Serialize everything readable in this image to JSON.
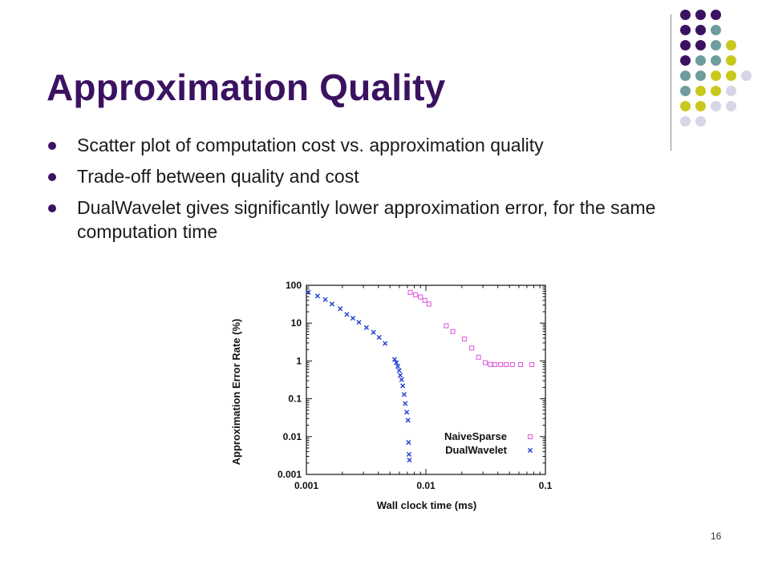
{
  "slide": {
    "title": "Approximation Quality",
    "bullets": [
      "Scatter plot of computation cost vs. approximation quality",
      "Trade-off between quality and cost",
      "DualWavelet gives significantly lower approximation error, for the same computation time"
    ],
    "page_number": "16"
  },
  "decoration": {
    "dot_rows": [
      [
        "purple",
        "purple",
        "purple"
      ],
      [
        "purple",
        "purple",
        "teal"
      ],
      [
        "purple",
        "purple",
        "teal",
        "yellow"
      ],
      [
        "purple",
        "teal",
        "teal",
        "yellow"
      ],
      [
        "teal",
        "teal",
        "yellow",
        "yellow",
        "lavender"
      ],
      [
        "teal",
        "yellow",
        "yellow",
        "lavender"
      ],
      [
        "yellow",
        "yellow",
        "lavender",
        "lavender"
      ],
      [
        "lavender",
        "lavender"
      ]
    ],
    "colors": {
      "purple": "#3b1261",
      "teal": "#6f9c9c",
      "yellow": "#c8c81e",
      "lavender": "#d6d6e6",
      "title": "#3b1261"
    }
  },
  "chart_data": {
    "type": "scatter",
    "xlabel": "Wall clock time (ms)",
    "ylabel": "Approximation Error Rate (%)",
    "x_scale": "log",
    "y_scale": "log",
    "xlim": [
      0.001,
      0.1
    ],
    "ylim": [
      0.001,
      100
    ],
    "x_ticks": [
      0.001,
      0.01,
      0.1
    ],
    "x_tick_labels": [
      "0.001",
      "0.01",
      "0.1"
    ],
    "y_ticks": [
      0.001,
      0.01,
      0.1,
      1,
      10,
      100
    ],
    "y_tick_labels": [
      "0.001",
      "0.01",
      "0.1",
      "1",
      "10",
      "100"
    ],
    "grid": false,
    "legend_position": "bottom-right",
    "series": [
      {
        "name": "NaiveSparse",
        "marker": "square",
        "color": "#e060e0",
        "points": [
          [
            0.0074,
            65
          ],
          [
            0.0082,
            56
          ],
          [
            0.009,
            49
          ],
          [
            0.0098,
            40
          ],
          [
            0.0106,
            32
          ],
          [
            0.0148,
            8.5
          ],
          [
            0.0168,
            6
          ],
          [
            0.021,
            3.8
          ],
          [
            0.0242,
            2.2
          ],
          [
            0.0276,
            1.25
          ],
          [
            0.0314,
            0.9
          ],
          [
            0.0346,
            0.81
          ],
          [
            0.0378,
            0.8
          ],
          [
            0.0422,
            0.8
          ],
          [
            0.047,
            0.8
          ],
          [
            0.053,
            0.8
          ],
          [
            0.062,
            0.8
          ],
          [
            0.077,
            0.8
          ]
        ]
      },
      {
        "name": "DualWavelet",
        "marker": "x",
        "color": "#1f3fd0",
        "points": [
          [
            0.00104,
            65
          ],
          [
            0.00124,
            52
          ],
          [
            0.00144,
            42
          ],
          [
            0.00164,
            32
          ],
          [
            0.00192,
            24
          ],
          [
            0.00218,
            17
          ],
          [
            0.00245,
            13.5
          ],
          [
            0.00275,
            10.5
          ],
          [
            0.00318,
            7.6
          ],
          [
            0.00364,
            5.7
          ],
          [
            0.00406,
            4.2
          ],
          [
            0.00456,
            2.9
          ],
          [
            0.00548,
            1.1
          ],
          [
            0.00566,
            0.9
          ],
          [
            0.00582,
            0.72
          ],
          [
            0.00598,
            0.56
          ],
          [
            0.0061,
            0.42
          ],
          [
            0.00626,
            0.32
          ],
          [
            0.0064,
            0.22
          ],
          [
            0.00658,
            0.13
          ],
          [
            0.00672,
            0.075
          ],
          [
            0.00692,
            0.044
          ],
          [
            0.00708,
            0.027
          ],
          [
            0.00716,
            0.007
          ],
          [
            0.00722,
            0.0034
          ],
          [
            0.00728,
            0.0024
          ]
        ]
      }
    ]
  }
}
